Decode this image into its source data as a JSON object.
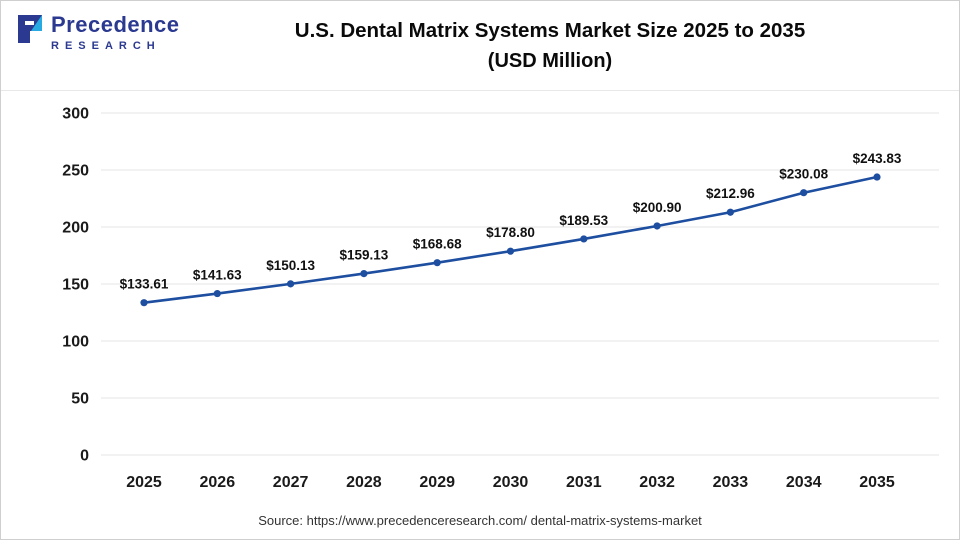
{
  "logo": {
    "name": "Precedence",
    "subname": "RESEARCH",
    "brand_color": "#2b3990",
    "accent_color": "#27aae1"
  },
  "header": {
    "title_line1": "U.S. Dental Matrix Systems Market Size 2025 to 2035",
    "title_line2": "(USD Million)"
  },
  "source": "Source: https://www.precedenceresearch.com/ dental-matrix-systems-market",
  "chart_data": {
    "type": "line",
    "title": "U.S. Dental Matrix Systems Market Size 2025 to 2035 (USD Million)",
    "categories": [
      "2025",
      "2026",
      "2027",
      "2028",
      "2029",
      "2030",
      "2031",
      "2032",
      "2033",
      "2034",
      "2035"
    ],
    "values": [
      133.61,
      141.63,
      150.13,
      159.13,
      168.68,
      178.8,
      189.53,
      200.9,
      212.96,
      230.08,
      243.83
    ],
    "data_labels": [
      "$133.61",
      "$141.63",
      "$150.13",
      "$159.13",
      "$168.68",
      "$178.80",
      "$189.53",
      "$200.90",
      "$212.96",
      "$230.08",
      "$243.83"
    ],
    "xlabel": "",
    "ylabel": "",
    "ylim": [
      0,
      300
    ],
    "yticks": [
      0,
      50,
      100,
      150,
      200,
      250,
      300
    ],
    "line_color": "#1d4ea0",
    "grid_color": "#e4e4e4",
    "grid": true,
    "legend": "none"
  }
}
